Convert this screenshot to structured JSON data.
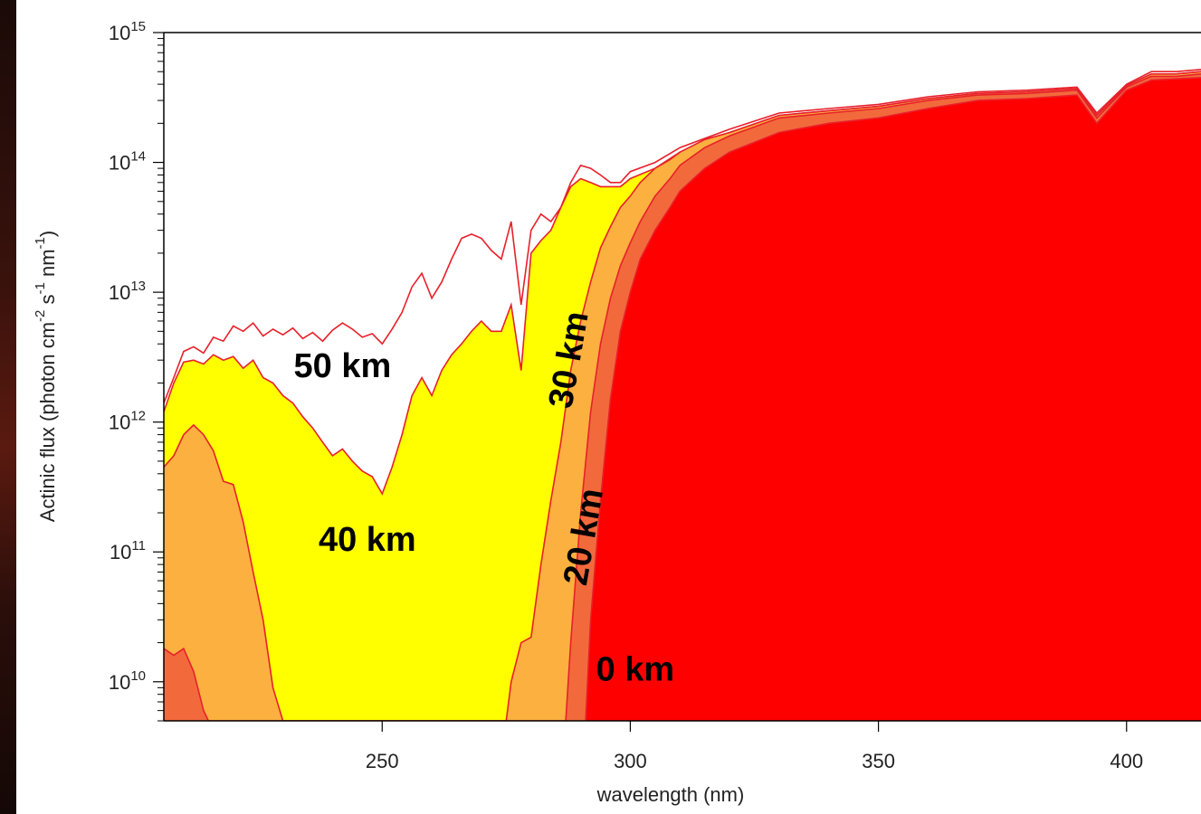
{
  "chart_data": {
    "type": "area",
    "xlabel": "wavelength (nm)",
    "ylabel_parts": [
      "Actinic flux (photon cm",
      "-2",
      " s",
      "-1",
      " nm",
      "-1",
      ")"
    ],
    "log_y": true,
    "xlim": [
      206,
      415
    ],
    "ylim": [
      5000000000.0,
      1000000000000000.0
    ],
    "x_ticks": [
      {
        "v": 250,
        "label": "250"
      },
      {
        "v": 300,
        "label": "300"
      },
      {
        "v": 350,
        "label": "350"
      },
      {
        "v": 400,
        "label": "400"
      }
    ],
    "y_ticks": [
      {
        "exp": 10,
        "base": "10",
        "sup": "10"
      },
      {
        "exp": 11,
        "base": "10",
        "sup": "11"
      },
      {
        "exp": 12,
        "base": "10",
        "sup": "12"
      },
      {
        "exp": 13,
        "base": "10",
        "sup": "13"
      },
      {
        "exp": 14,
        "base": "10",
        "sup": "14"
      },
      {
        "exp": 15,
        "base": "10",
        "sup": "15"
      }
    ],
    "colors": {
      "50 km": "#ffffff",
      "40 km": "#ffff00",
      "30 km": "#fbb040",
      "20 km": "#f26a3c",
      "0 km": "#ff0000",
      "line": "#e8202a"
    },
    "series": [
      {
        "name": "50 km",
        "x": [
          206,
          208,
          210,
          212,
          214,
          216,
          218,
          220,
          222,
          224,
          226,
          228,
          230,
          232,
          234,
          236,
          238,
          240,
          242,
          244,
          246,
          248,
          250,
          252,
          254,
          256,
          258,
          260,
          262,
          264,
          266,
          268,
          270,
          272,
          274,
          276,
          278,
          280,
          282,
          284,
          286,
          288,
          290,
          292,
          294,
          296,
          298,
          300,
          305,
          310,
          320,
          330,
          340,
          350,
          360,
          370,
          380,
          390,
          394,
          400,
          405,
          410,
          415
        ],
        "y": [
          1400000000000.0,
          2200000000000.0,
          3500000000000.0,
          3800000000000.0,
          3400000000000.0,
          4500000000000.0,
          4200000000000.0,
          5500000000000.0,
          5000000000000.0,
          5800000000000.0,
          4600000000000.0,
          5200000000000.0,
          4700000000000.0,
          5300000000000.0,
          4400000000000.0,
          4900000000000.0,
          4200000000000.0,
          5100000000000.0,
          5800000000000.0,
          5200000000000.0,
          4500000000000.0,
          4800000000000.0,
          4000000000000.0,
          5200000000000.0,
          7000000000000.0,
          11000000000000.0,
          14000000000000.0,
          9000000000000.0,
          12000000000000.0,
          18000000000000.0,
          26000000000000.0,
          28000000000000.0,
          26000000000000.0,
          21000000000000.0,
          18000000000000.0,
          35000000000000.0,
          8000000000000.0,
          30000000000000.0,
          40000000000000.0,
          35000000000000.0,
          45000000000000.0,
          70000000000000.0,
          95000000000000.0,
          90000000000000.0,
          80000000000000.0,
          70000000000000.0,
          70000000000000.0,
          85000000000000.0,
          100000000000000.0,
          130000000000000.0,
          180000000000000.0,
          240000000000000.0,
          260000000000000.0,
          280000000000000.0,
          320000000000000.0,
          350000000000000.0,
          360000000000000.0,
          380000000000000.0,
          240000000000000.0,
          400000000000000.0,
          500000000000000.0,
          500000000000000.0,
          520000000000000.0
        ]
      },
      {
        "name": "40 km",
        "x": [
          206,
          208,
          210,
          212,
          214,
          216,
          218,
          220,
          222,
          224,
          226,
          228,
          230,
          232,
          234,
          236,
          238,
          240,
          242,
          244,
          246,
          248,
          250,
          252,
          254,
          256,
          258,
          260,
          262,
          264,
          266,
          268,
          270,
          272,
          274,
          276,
          278,
          280,
          282,
          284,
          286,
          288,
          290,
          292,
          294,
          296,
          298,
          300,
          305,
          310,
          320,
          330,
          340,
          350,
          360,
          370,
          380,
          390,
          394,
          400,
          405,
          410,
          415
        ],
        "y": [
          1200000000000.0,
          2000000000000.0,
          2900000000000.0,
          3000000000000.0,
          2800000000000.0,
          3300000000000.0,
          3000000000000.0,
          3200000000000.0,
          2600000000000.0,
          3000000000000.0,
          2200000000000.0,
          2000000000000.0,
          1600000000000.0,
          1400000000000.0,
          1100000000000.0,
          900000000000.0,
          700000000000.0,
          550000000000.0,
          620000000000.0,
          500000000000.0,
          420000000000.0,
          380000000000.0,
          280000000000.0,
          450000000000.0,
          800000000000.0,
          1600000000000.0,
          2200000000000.0,
          1600000000000.0,
          2500000000000.0,
          3300000000000.0,
          4000000000000.0,
          5000000000000.0,
          6000000000000.0,
          5000000000000.0,
          5000000000000.0,
          8000000000000.0,
          2500000000000.0,
          20000000000000.0,
          25000000000000.0,
          30000000000000.0,
          45000000000000.0,
          65000000000000.0,
          75000000000000.0,
          70000000000000.0,
          65000000000000.0,
          65000000000000.0,
          65000000000000.0,
          75000000000000.0,
          90000000000000.0,
          120000000000000.0,
          170000000000000.0,
          230000000000000.0,
          250000000000000.0,
          270000000000000.0,
          310000000000000.0,
          340000000000000.0,
          350000000000000.0,
          370000000000000.0,
          230000000000000.0,
          390000000000000.0,
          480000000000000.0,
          480000000000000.0,
          500000000000000.0
        ]
      },
      {
        "name": "30 km",
        "x": [
          206,
          208,
          210,
          212,
          214,
          216,
          218,
          220,
          222,
          224,
          226,
          228,
          230,
          231,
          275,
          276,
          278,
          280,
          282,
          284,
          286,
          288,
          290,
          292,
          294,
          296,
          298,
          300,
          302,
          305,
          308,
          310,
          315,
          320,
          330,
          340,
          350,
          360,
          370,
          380,
          390,
          394,
          400,
          405,
          410,
          415
        ],
        "y": [
          450000000000.0,
          550000000000.0,
          800000000000.0,
          950000000000.0,
          800000000000.0,
          600000000000.0,
          350000000000.0,
          330000000000.0,
          170000000000.0,
          70000000000.0,
          30000000000.0,
          9000000000.0,
          5000000000.0,
          5000000000.0,
          5000000000.0,
          10000000000.0,
          20000000000.0,
          22000000000.0,
          80000000000.0,
          250000000000.0,
          700000000000.0,
          2500000000000.0,
          6000000000000.0,
          12000000000000.0,
          22000000000000.0,
          32000000000000.0,
          45000000000000.0,
          55000000000000.0,
          70000000000000.0,
          90000000000000.0,
          105000000000000.0,
          120000000000000.0,
          150000000000000.0,
          170000000000000.0,
          230000000000000.0,
          250000000000000.0,
          270000000000000.0,
          310000000000000.0,
          340000000000000.0,
          350000000000000.0,
          370000000000000.0,
          230000000000000.0,
          390000000000000.0,
          480000000000000.0,
          480000000000000.0,
          500000000000000.0
        ]
      },
      {
        "name": "20 km",
        "x": [
          206,
          208,
          210,
          212,
          214,
          215,
          287,
          288,
          290,
          292,
          294,
          296,
          298,
          300,
          302,
          305,
          308,
          310,
          315,
          320,
          330,
          340,
          350,
          360,
          370,
          380,
          390,
          394,
          400,
          405,
          410,
          415
        ],
        "y": [
          18000000000.0,
          16000000000.0,
          18000000000.0,
          12000000000.0,
          6000000000.0,
          5000000000.0,
          5000000000.0,
          20000000000.0,
          200000000000.0,
          1200000000000.0,
          4000000000000.0,
          9000000000000.0,
          16000000000000.0,
          24000000000000.0,
          35000000000000.0,
          55000000000000.0,
          75000000000000.0,
          95000000000000.0,
          130000000000000.0,
          160000000000000.0,
          220000000000000.0,
          240000000000000.0,
          260000000000000.0,
          300000000000000.0,
          330000000000000.0,
          340000000000000.0,
          360000000000000.0,
          220000000000000.0,
          380000000000000.0,
          460000000000000.0,
          460000000000000.0,
          480000000000000.0
        ]
      },
      {
        "name": "0 km",
        "x": [
          291,
          292,
          294,
          296,
          298,
          300,
          302,
          305,
          308,
          310,
          315,
          320,
          330,
          340,
          350,
          360,
          370,
          380,
          390,
          394,
          400,
          405,
          410,
          415
        ],
        "y": [
          5000000000.0,
          30000000000.0,
          250000000000.0,
          1500000000000.0,
          5000000000000.0,
          10000000000000.0,
          18000000000000.0,
          30000000000000.0,
          45000000000000.0,
          60000000000000.0,
          90000000000000.0,
          120000000000000.0,
          170000000000000.0,
          200000000000000.0,
          220000000000000.0,
          260000000000000.0,
          300000000000000.0,
          310000000000000.0,
          330000000000000.0,
          200000000000000.0,
          360000000000000.0,
          430000000000000.0,
          440000000000000.0,
          450000000000000.0
        ]
      }
    ],
    "annotations": [
      {
        "text": "50 km",
        "x": 242,
        "y": 2600000000000.0,
        "rotate": 0
      },
      {
        "text": "40 km",
        "x": 247,
        "y": 120000000000.0,
        "rotate": 0
      },
      {
        "text": "30 km",
        "x": 288,
        "y": 3000000000000.0,
        "rotate": -80
      },
      {
        "text": "20 km",
        "x": 291,
        "y": 130000000000.0,
        "rotate": -80
      },
      {
        "text": "0 km",
        "x": 301,
        "y": 12000000000.0,
        "rotate": 0
      }
    ]
  }
}
